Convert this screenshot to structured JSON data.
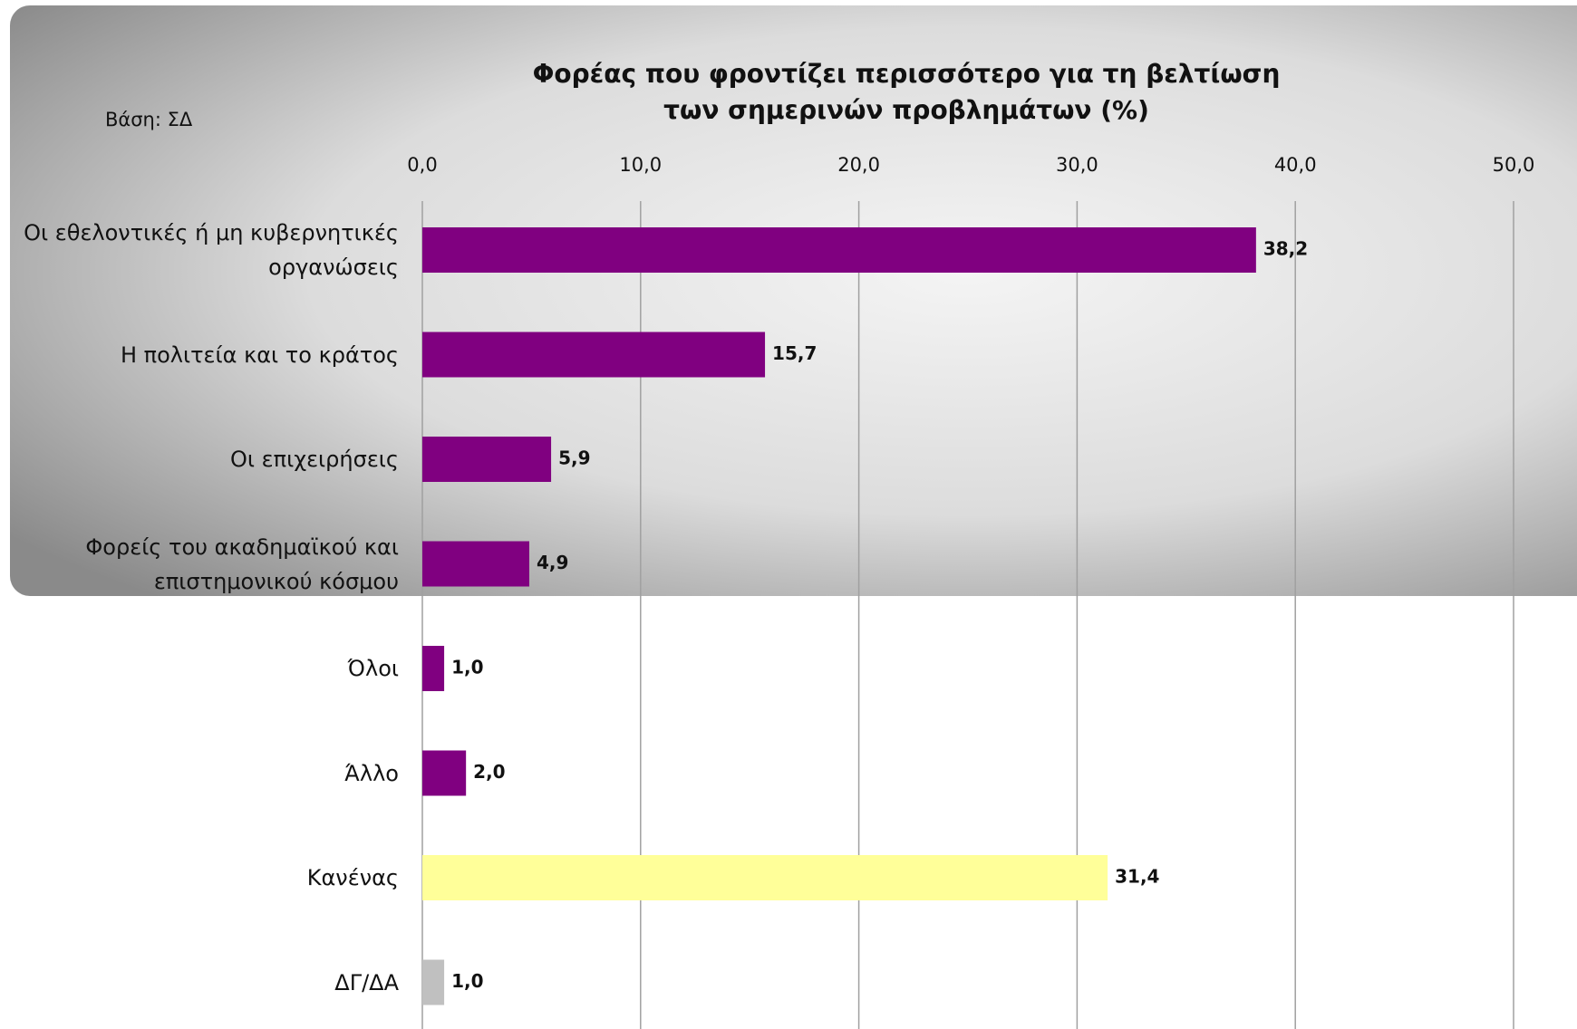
{
  "chart_data": {
    "type": "bar",
    "orientation": "horizontal",
    "title": "Φορέας που φροντίζει περισσότερο για τη βελτίωση των σημερινών προβλημάτων (%)",
    "note": "Βάση: ΣΔ",
    "categories": [
      "Οι εθελοντικές ή μη κυβερνητικές οργανώσεις",
      "Η πολιτεία και το κράτος",
      "Οι επιχειρήσεις",
      "Φορείς του ακαδημαϊκού και επιστημονικού κόσμου",
      "Όλοι",
      "Άλλο",
      "Κανένας",
      "ΔΓ/ΔΑ"
    ],
    "values": [
      38.2,
      15.7,
      5.9,
      4.9,
      1.0,
      2.0,
      31.4,
      1.0
    ],
    "value_labels": [
      "38,2",
      "15,7",
      "5,9",
      "4,9",
      "1,0",
      "2,0",
      "31,4",
      "1,0"
    ],
    "colors": [
      "#800080",
      "#800080",
      "#800080",
      "#800080",
      "#800080",
      "#800080",
      "#ffff99",
      "#c0c0c0"
    ],
    "xlim": [
      0,
      50
    ],
    "xticks": [
      {
        "value": 0,
        "label": "0,0"
      },
      {
        "value": 10,
        "label": "10,0"
      },
      {
        "value": 20,
        "label": "20,0"
      },
      {
        "value": 30,
        "label": "30,0"
      },
      {
        "value": 40,
        "label": "40,0"
      },
      {
        "value": 50,
        "label": "50,0"
      }
    ],
    "grid": true
  }
}
